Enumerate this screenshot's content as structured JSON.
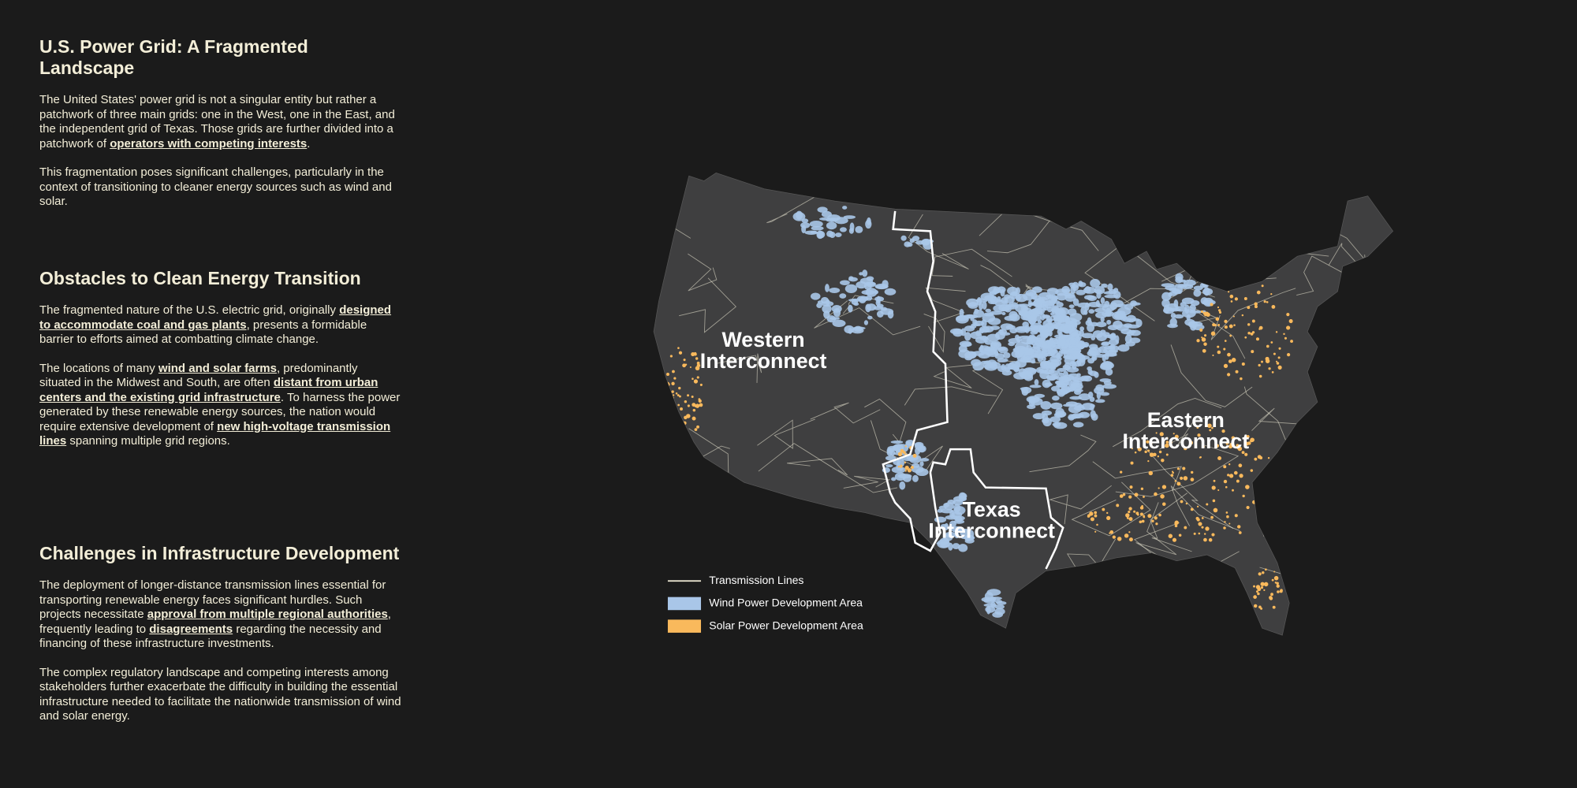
{
  "sections": [
    {
      "title": "U.S. Power Grid: A Fragmented Landscape",
      "paragraphs": [
        [
          "The United States' power grid is not a singular entity but rather a patchwork of three main grids: one in the West, one in the East, and the independent grid of Texas. Those grids are further divided into a patchwork of ",
          {
            "link": "operators with competing interests"
          },
          "."
        ],
        [
          "This fragmentation poses significant challenges, particularly in the context of transitioning to cleaner energy sources such as wind and solar."
        ]
      ]
    },
    {
      "title": "Obstacles to Clean Energy Transition",
      "paragraphs": [
        [
          "The fragmented nature of the U.S. electric grid, originally ",
          {
            "link": "designed to accommodate coal and gas plants"
          },
          ", presents a formidable barrier to efforts aimed at combatting climate change."
        ],
        [
          "The locations of many ",
          {
            "link": "wind and solar farms"
          },
          ", predominantly situated in the Midwest and South, are often ",
          {
            "link": "distant from urban centers and the existing grid infrastructure"
          },
          ". To harness the power generated by these renewable energy sources, the nation would require extensive development of ",
          {
            "link": "new high-voltage transmission lines"
          },
          " spanning multiple grid regions."
        ]
      ]
    },
    {
      "title": "Challenges in Infrastructure Development",
      "paragraphs": [
        [
          "The deployment of longer-distance transmission lines essential for transporting renewable energy faces significant hurdles. Such projects necessitate ",
          {
            "link": "approval from multiple regional authorities"
          },
          ", frequently leading to ",
          {
            "link": "disagreements"
          },
          " regarding the necessity and financing of these infrastructure investments."
        ],
        [
          "The complex regulatory landscape and competing interests among stakeholders further exacerbate the difficulty in building the essential infrastructure needed to facilitate the nationwide transmission of wind and solar energy."
        ]
      ]
    }
  ],
  "map": {
    "regions": [
      {
        "lines": [
          "Western",
          "Interconnect"
        ]
      },
      {
        "lines": [
          "Eastern",
          "Interconnect"
        ]
      },
      {
        "lines": [
          "Texas",
          "Interconnect"
        ]
      }
    ],
    "legend": [
      {
        "label": "Transmission Lines",
        "color": "#f3eed8"
      },
      {
        "label": "Wind Power Development Area",
        "color": "#a9c6e8"
      },
      {
        "label": "Solar Power Development Area",
        "color": "#f9b95c"
      }
    ]
  }
}
